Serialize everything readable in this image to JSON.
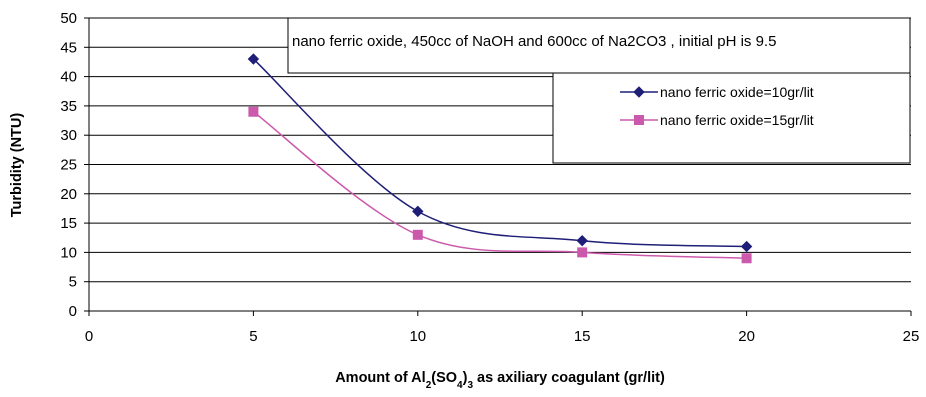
{
  "chart_data": {
    "type": "line",
    "title": "",
    "annotation": "nano ferric oxide, 450cc of NaOH and 600cc of Na2CO3 , initial pH is 9.5",
    "xlabel": {
      "prefix": "Amount of Al",
      "sub1": "2",
      "mid": "(SO",
      "sub2": "4",
      "close": ")",
      "sub3": "3",
      "suffix": " as axiliary coagulant (gr/lit)"
    },
    "ylabel": "Turbidity (NTU)",
    "xlim": [
      0,
      25
    ],
    "ylim": [
      0,
      50
    ],
    "xticks": [
      "0",
      "5",
      "10",
      "15",
      "20",
      "25"
    ],
    "yticks": [
      "0",
      "5",
      "10",
      "15",
      "20",
      "25",
      "30",
      "35",
      "40",
      "45",
      "50"
    ],
    "grid": "horizontal",
    "legend_position": "top-right",
    "x": [
      5,
      10,
      15,
      20
    ],
    "series": [
      {
        "name": "nano ferric oxide=10gr/lit",
        "values": [
          43,
          17,
          12,
          11
        ],
        "color": "#1f1f78",
        "marker": "diamond"
      },
      {
        "name": "nano ferric oxide=15gr/lit",
        "values": [
          34,
          13,
          10,
          9
        ],
        "color": "#cc5aac",
        "marker": "square"
      }
    ]
  }
}
